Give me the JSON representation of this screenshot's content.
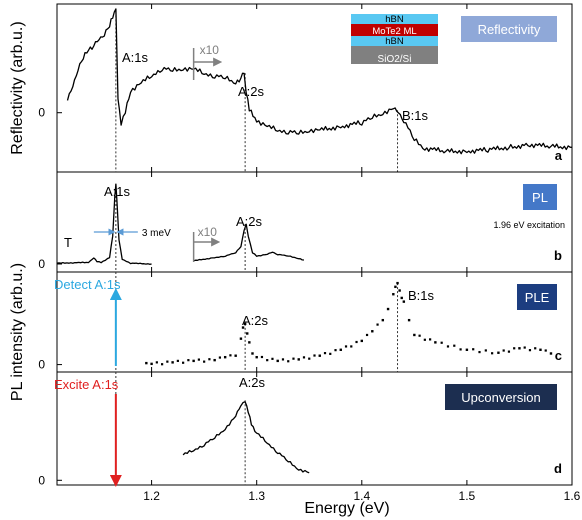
{
  "chart_data": {
    "type": "line",
    "xlabel": "Energy (eV)",
    "xlim": [
      1.11,
      1.6
    ],
    "x_ticks": [
      "1.2",
      "1.3",
      "1.4",
      "1.5",
      "1.6"
    ],
    "x_tick_values": [
      1.2,
      1.3,
      1.4,
      1.5,
      1.6
    ],
    "ylabels": [
      "Reflectivity (arb.u.)",
      "PL intensity (arb.u.)"
    ],
    "marker_lines_eV": [
      1.166,
      1.289,
      1.434
    ],
    "panels": [
      {
        "id": "a",
        "letter": "a",
        "badge": "Reflectivity",
        "badge_color": "#8fa8d8",
        "zero_label": "0",
        "ylim": [
          -1.2,
          2.2
        ],
        "zero_y": 0,
        "annotations": [
          "A:1s",
          "x10",
          "A:2s",
          "B:1s"
        ],
        "stack": [
          "hBN",
          "MoTe2 ML",
          "hBN",
          "SiO2/Si"
        ],
        "stack_colors": [
          "#59c8f2",
          "#c00000",
          "#59c8f2",
          "#808080"
        ],
        "series": [
          {
            "style": "line",
            "x": [
              1.12,
              1.125,
              1.13,
              1.135,
              1.14,
              1.145,
              1.15,
              1.155,
              1.16,
              1.163,
              1.166,
              1.168,
              1.171,
              1.175,
              1.18,
              1.19,
              1.2,
              1.21,
              1.22,
              1.23,
              1.24,
              1.25,
              1.26,
              1.27,
              1.28,
              1.285,
              1.288,
              1.29,
              1.293,
              1.3,
              1.31,
              1.32,
              1.33,
              1.34,
              1.35,
              1.36,
              1.38,
              1.4,
              1.41,
              1.42,
              1.43,
              1.435,
              1.44,
              1.45,
              1.46,
              1.48,
              1.5,
              1.52,
              1.54,
              1.56,
              1.58,
              1.6
            ],
            "y": [
              0.25,
              0.55,
              0.9,
              1.1,
              1.3,
              1.35,
              1.5,
              1.6,
              1.75,
              1.95,
              2.1,
              0.3,
              -0.2,
              0.0,
              0.45,
              0.6,
              0.75,
              0.9,
              0.85,
              0.9,
              0.88,
              0.8,
              0.75,
              0.7,
              0.62,
              0.7,
              0.82,
              0.45,
              0.05,
              -0.15,
              -0.28,
              -0.35,
              -0.38,
              -0.42,
              -0.35,
              -0.35,
              -0.28,
              -0.2,
              -0.1,
              0.0,
              0.08,
              0.02,
              -0.15,
              -0.55,
              -0.72,
              -0.78,
              -0.78,
              -0.75,
              -0.7,
              -0.65,
              -0.68,
              -0.7
            ]
          }
        ]
      },
      {
        "id": "b",
        "letter": "b",
        "badge": "PL",
        "badge_color": "#4478c8",
        "zero_label": "0",
        "ylim": [
          -0.1,
          1.15
        ],
        "zero_y": 0,
        "annotations": [
          "A:1s",
          "T",
          "3 meV",
          "x10",
          "A:2s",
          "1.96 eV excitation"
        ],
        "series": [
          {
            "style": "line",
            "x": [
              1.11,
              1.14,
              1.145,
              1.148,
              1.152,
              1.16,
              1.163,
              1.165,
              1.166,
              1.167,
              1.169,
              1.172,
              1.18,
              1.2
            ],
            "y": [
              0.01,
              0.02,
              0.08,
              0.03,
              0.02,
              0.08,
              0.35,
              0.85,
              1.0,
              0.8,
              0.3,
              0.06,
              0.01,
              0.0
            ]
          },
          {
            "style": "line",
            "x": [
              1.24,
              1.26,
              1.27,
              1.28,
              1.285,
              1.288,
              1.29,
              1.292,
              1.296,
              1.3,
              1.31,
              1.315,
              1.32,
              1.33,
              1.34,
              1.345
            ],
            "y": [
              0.04,
              0.08,
              0.1,
              0.14,
              0.22,
              0.42,
              0.5,
              0.35,
              0.14,
              0.1,
              0.12,
              0.15,
              0.12,
              0.1,
              0.07,
              0.05
            ]
          }
        ]
      },
      {
        "id": "c",
        "letter": "c",
        "badge": "PLE",
        "badge_color": "#1c3d80",
        "zero_label": "0",
        "ylim": [
          -0.1,
          1.25
        ],
        "zero_y": 0,
        "annotations": [
          "Detect A:1s",
          "A:2s",
          "B:1s"
        ],
        "arrow_color": "#2ba8e0",
        "arrow_energy": 1.166,
        "series": [
          {
            "style": "dots",
            "x": [
              1.195,
              1.2,
              1.22,
              1.24,
              1.26,
              1.27,
              1.28,
              1.285,
              1.287,
              1.289,
              1.291,
              1.293,
              1.296,
              1.3,
              1.32,
              1.34,
              1.36,
              1.38,
              1.4,
              1.41,
              1.42,
              1.425,
              1.43,
              1.432,
              1.434,
              1.436,
              1.438,
              1.44,
              1.445,
              1.45,
              1.47,
              1.5,
              1.53,
              1.55,
              1.57,
              1.58
            ],
            "y": [
              0.02,
              0.01,
              0.03,
              0.05,
              0.06,
              0.1,
              0.12,
              0.35,
              0.5,
              0.55,
              0.42,
              0.3,
              0.15,
              0.1,
              0.05,
              0.07,
              0.12,
              0.2,
              0.32,
              0.45,
              0.6,
              0.75,
              0.95,
              1.05,
              1.1,
              1.0,
              0.9,
              0.85,
              0.6,
              0.4,
              0.3,
              0.2,
              0.16,
              0.22,
              0.2,
              0.15
            ]
          }
        ]
      },
      {
        "id": "d",
        "letter": "d",
        "badge": "Upconversion",
        "badge_color": "#1c2e50",
        "zero_label": "0",
        "ylim": [
          -0.05,
          1.15
        ],
        "zero_y": 0,
        "annotations": [
          "Excite A:1s",
          "A:2s"
        ],
        "arrow_color": "#e02020",
        "arrow_energy": 1.166,
        "series": [
          {
            "style": "line",
            "x": [
              1.23,
              1.24,
              1.25,
              1.26,
              1.27,
              1.28,
              1.285,
              1.289,
              1.292,
              1.295,
              1.3,
              1.31,
              1.32,
              1.33,
              1.34,
              1.35
            ],
            "y": [
              0.27,
              0.32,
              0.38,
              0.45,
              0.55,
              0.68,
              0.8,
              0.85,
              0.72,
              0.6,
              0.5,
              0.4,
              0.3,
              0.2,
              0.12,
              0.08
            ]
          }
        ]
      }
    ]
  }
}
